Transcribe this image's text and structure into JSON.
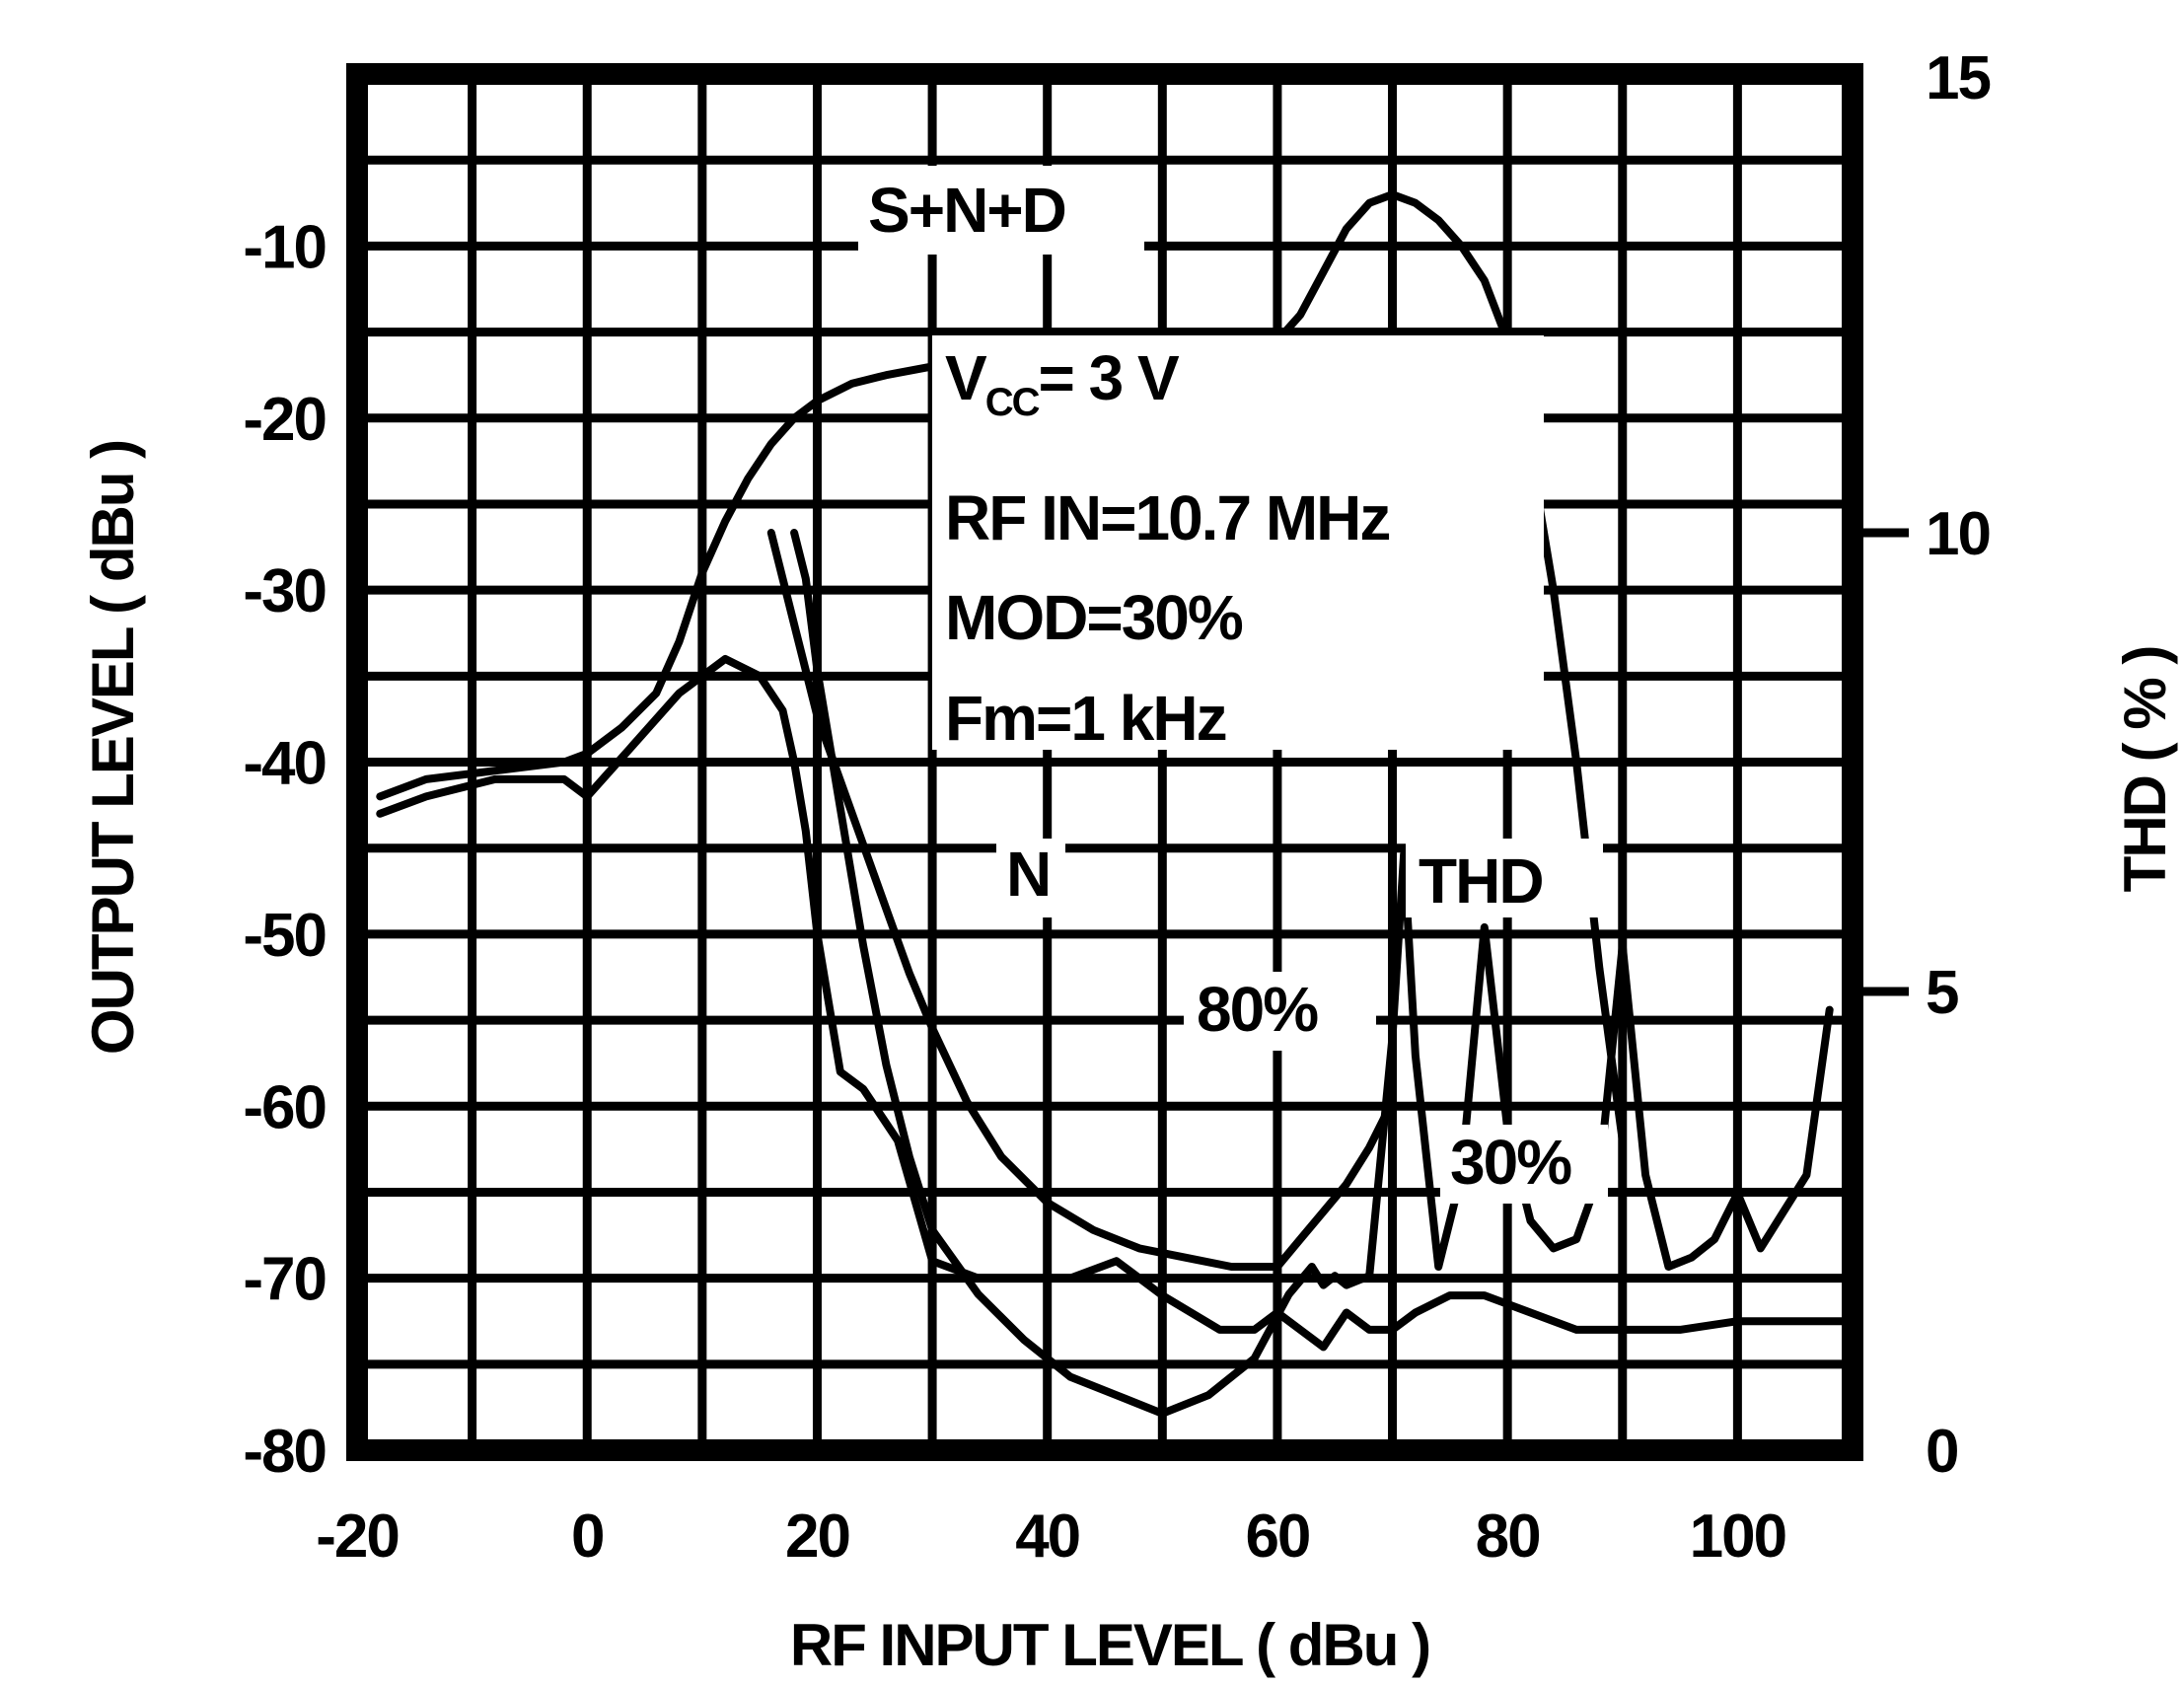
{
  "chart_data": {
    "type": "line",
    "xlabel": "RF INPUT LEVEL ( dBu )",
    "ylabel": "OUTPUT LEVEL ( dBu )",
    "y2label": "THD ( % )",
    "xlim": [
      -20,
      110
    ],
    "ylim": [
      -80,
      0
    ],
    "y2lim": [
      0,
      15
    ],
    "x_ticks": [
      "-20",
      "0",
      "20",
      "40",
      "60",
      "80",
      "100"
    ],
    "y_ticks": [
      "-10",
      "-20",
      "-30",
      "-40",
      "-50",
      "-60",
      "-70",
      "-80"
    ],
    "y2_ticks": [
      "15",
      "10",
      "5",
      "0"
    ],
    "grid": true,
    "annotations": {
      "vcc_main": "V",
      "vcc_sub": "CC",
      "vcc_rest": "= 3 V",
      "rf_in": "RF IN=10.7 MHz",
      "mod": "MOD=30%",
      "fm": "Fm=1 kHz"
    },
    "series": [
      {
        "name": "S+N+D",
        "axis": "left",
        "x": [
          -18,
          -14,
          -8,
          -2,
          0,
          3,
          6,
          8,
          10,
          12,
          14,
          16,
          18,
          20,
          23,
          26,
          30,
          35,
          40,
          45,
          50,
          55,
          58,
          60,
          62,
          64,
          66,
          68,
          70,
          72,
          74,
          76,
          78,
          80,
          82,
          84,
          86,
          88,
          90
        ],
        "y": [
          -42,
          -41,
          -40.5,
          -40,
          -39.5,
          -38,
          -36,
          -33,
          -29,
          -26,
          -23.5,
          -21.5,
          -20,
          -19,
          -18,
          -17.5,
          -17,
          -16.8,
          -16.6,
          -16.5,
          -16.3,
          -16,
          -15.8,
          -15.5,
          -14,
          -11.5,
          -9,
          -7.5,
          -7,
          -7.5,
          -8.5,
          -10,
          -12,
          -15.5,
          -22,
          -30,
          -40,
          -52,
          -62
        ]
      },
      {
        "name": "N",
        "axis": "left",
        "x": [
          -18,
          -14,
          -8,
          -2,
          0,
          4,
          8,
          12,
          15,
          17,
          18,
          19,
          20,
          21,
          22,
          24,
          27,
          30,
          34,
          38,
          42,
          46,
          50,
          55,
          58,
          60,
          62,
          64,
          65,
          66,
          68,
          70,
          72,
          75,
          78,
          82,
          86,
          90,
          95,
          100,
          105,
          110
        ],
        "y": [
          -43,
          -42,
          -41,
          -41,
          -42,
          -39,
          -36,
          -34,
          -35,
          -37,
          -40,
          -44,
          -50,
          -54,
          -58,
          -59,
          -62,
          -69,
          -70,
          -70,
          -70,
          -69,
          -71,
          -73,
          -73,
          -72,
          -73,
          -74,
          -73,
          -72,
          -73,
          -73,
          -72,
          -71,
          -71,
          -72,
          -73,
          -73,
          -73,
          -72.5,
          -72.5,
          -72.5
        ]
      },
      {
        "name": "THD MOD 80%",
        "axis": "right",
        "x": [
          16,
          18,
          20,
          22,
          24,
          26,
          28,
          30,
          33,
          36,
          40,
          44,
          48,
          52,
          56,
          60,
          62,
          64,
          66,
          68,
          70
        ],
        "y": [
          10,
          9,
          8,
          7.3,
          6.6,
          5.9,
          5.2,
          4.6,
          3.8,
          3.2,
          2.7,
          2.4,
          2.2,
          2.1,
          2.0,
          2.0,
          2.3,
          2.6,
          2.9,
          3.3,
          3.8
        ]
      },
      {
        "name": "THD MOD 30%",
        "axis": "right",
        "x": [
          18,
          19,
          20,
          22,
          24,
          26,
          28,
          30,
          34,
          38,
          42,
          46,
          50,
          54,
          58,
          61,
          63,
          64,
          65,
          66,
          68,
          70,
          71,
          72,
          74,
          76,
          78,
          80,
          82,
          84,
          86,
          88,
          90,
          92,
          94,
          96,
          98,
          100,
          102,
          104,
          106,
          108
        ],
        "y": [
          10,
          9.5,
          8.5,
          7,
          5.5,
          4.2,
          3.2,
          2.4,
          1.7,
          1.2,
          0.8,
          0.6,
          0.4,
          0.6,
          1.0,
          1.7,
          2.0,
          1.8,
          1.9,
          1.8,
          1.9,
          4.5,
          6.5,
          4.3,
          2.0,
          3.0,
          5.7,
          3.5,
          2.5,
          2.2,
          2.3,
          3.0,
          5.5,
          3.0,
          2.0,
          2.1,
          2.3,
          2.8,
          2.2,
          2.6,
          3.0,
          4.8
        ]
      }
    ],
    "series_labels": {
      "snd": "S+N+D",
      "n": "N",
      "thd": "THD",
      "mod80": "80%",
      "mod30": "30%"
    }
  }
}
